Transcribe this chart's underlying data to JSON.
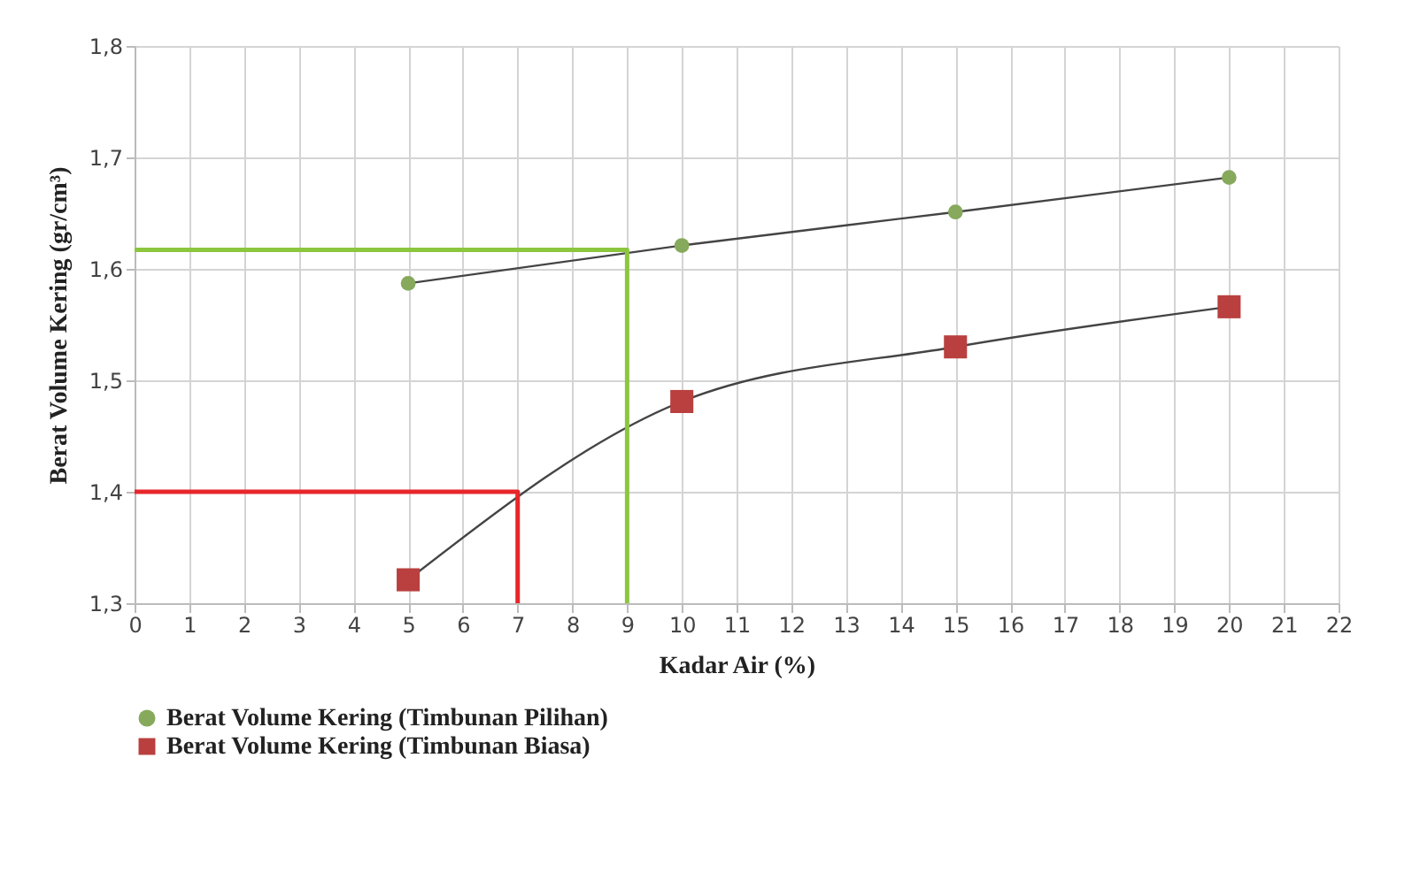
{
  "chart_data": {
    "type": "line",
    "xlabel": "Kadar Air (%)",
    "ylabel": "Berat Volume Kering (gr/cm³)",
    "xlim": [
      0,
      22
    ],
    "xticks": [
      0,
      1,
      2,
      3,
      4,
      5,
      6,
      7,
      8,
      9,
      10,
      11,
      12,
      13,
      14,
      15,
      16,
      17,
      18,
      19,
      20,
      21,
      22
    ],
    "ylim": [
      1.3,
      1.8
    ],
    "yticks": [
      {
        "value": 1.3,
        "label": "1,3"
      },
      {
        "value": 1.4,
        "label": "1,4"
      },
      {
        "value": 1.5,
        "label": "1,5"
      },
      {
        "value": 1.6,
        "label": "1,6"
      },
      {
        "value": 1.7,
        "label": "1,7"
      },
      {
        "value": 1.8,
        "label": "1,8"
      }
    ],
    "grid": true,
    "legend": "bottom left",
    "series": [
      {
        "name": "Berat Volume Kering (Timbunan Pilihan)",
        "color": "#86a95c",
        "marker": "circle",
        "x": [
          5,
          10,
          15,
          20
        ],
        "values": [
          1.587,
          1.621,
          1.651,
          1.682
        ]
      },
      {
        "name": "Berat Volume Kering (Timbunan Biasa)",
        "color": "#b9403f",
        "marker": "square",
        "x": [
          5,
          10,
          15,
          20
        ],
        "values": [
          1.321,
          1.481,
          1.53,
          1.566
        ]
      },
      {
        "color": "#8cc63f",
        "marker": "none",
        "x": [
          0,
          9,
          9
        ],
        "values": [
          1.617,
          1.617,
          1.3
        ]
      },
      {
        "color": "#e8262b",
        "marker": "none",
        "x": [
          0,
          7,
          7
        ],
        "values": [
          1.4,
          1.4,
          1.3
        ]
      }
    ]
  }
}
